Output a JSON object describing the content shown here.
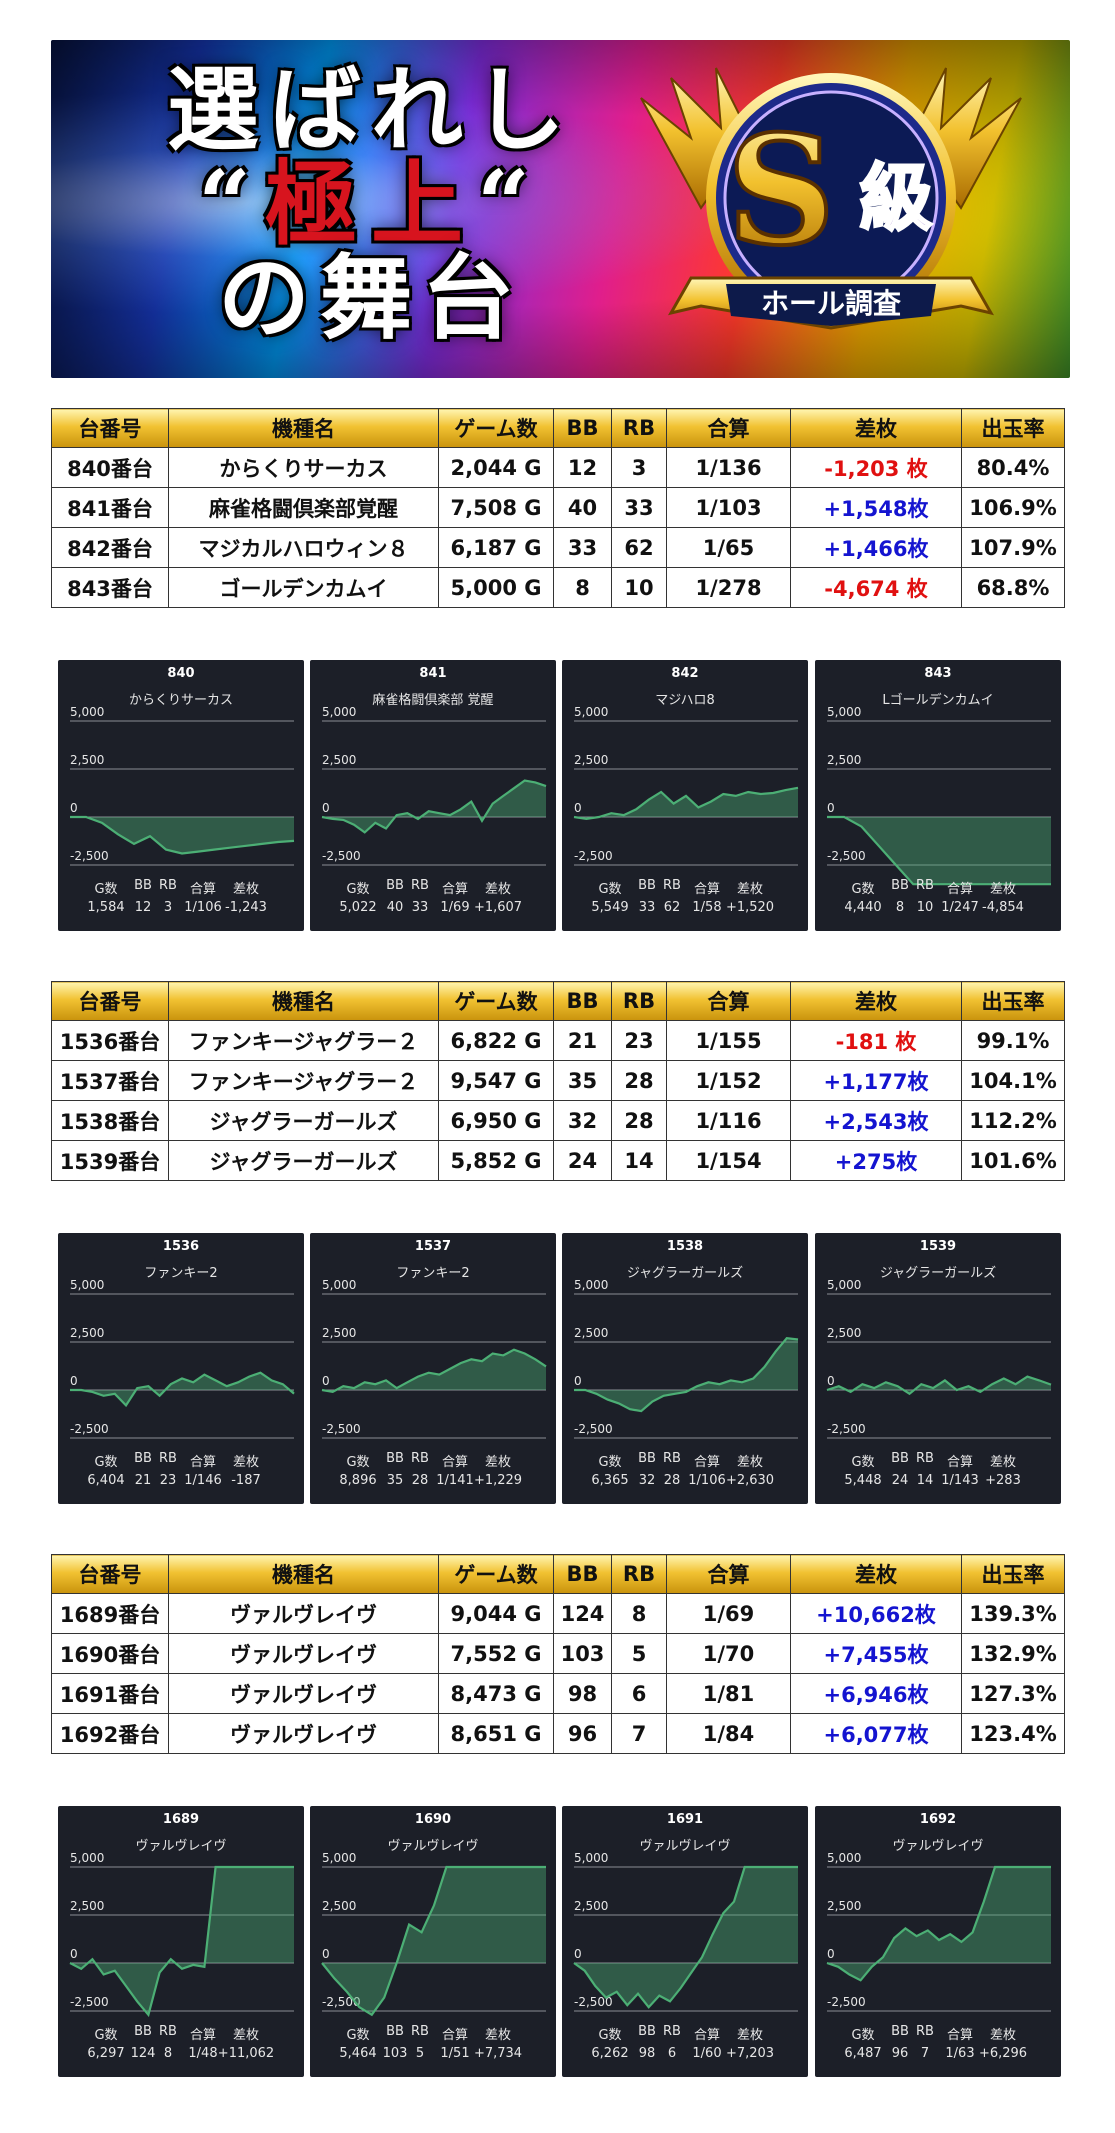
{
  "banner": {
    "line1": "選ばれし",
    "line2_open": "“",
    "line2_red": "極上",
    "line2_close": "“",
    "line3": "の舞台",
    "badge_main": "S級",
    "badge_ribbon": "ホール調査"
  },
  "colors": {
    "header_gold": "#f1c232",
    "negative": "#e01010",
    "positive": "#1414d0",
    "chart_bg": "#1c1f28",
    "chart_line": "#4caf75"
  },
  "table_headers": [
    "台番号",
    "機種名",
    "ゲーム数",
    "BB",
    "RB",
    "合算",
    "差枚",
    "出玉率"
  ],
  "tables": [
    {
      "rows": [
        {
          "no": "840番台",
          "name": "からくりサーカス",
          "games": "2,044 G",
          "bb": "12",
          "rb": "3",
          "total": "1/136",
          "diff": "-1,203 枚",
          "rate": "80.4%",
          "sign": "neg"
        },
        {
          "no": "841番台",
          "name": "麻雀格闘倶楽部覚醒",
          "games": "7,508 G",
          "bb": "40",
          "rb": "33",
          "total": "1/103",
          "diff": "+1,548枚",
          "rate": "106.9%",
          "sign": "pos"
        },
        {
          "no": "842番台",
          "name": "マジカルハロウィン８",
          "games": "6,187 G",
          "bb": "33",
          "rb": "62",
          "total": "1/65",
          "diff": "+1,466枚",
          "rate": "107.9%",
          "sign": "pos"
        },
        {
          "no": "843番台",
          "name": "ゴールデンカムイ",
          "games": "5,000 G",
          "bb": "8",
          "rb": "10",
          "total": "1/278",
          "diff": "-4,674 枚",
          "rate": "68.8%",
          "sign": "neg"
        }
      ]
    },
    {
      "rows": [
        {
          "no": "1536番台",
          "name": "ファンキージャグラー２",
          "games": "6,822 G",
          "bb": "21",
          "rb": "23",
          "total": "1/155",
          "diff": "-181 枚",
          "rate": "99.1%",
          "sign": "neg"
        },
        {
          "no": "1537番台",
          "name": "ファンキージャグラー２",
          "games": "9,547 G",
          "bb": "35",
          "rb": "28",
          "total": "1/152",
          "diff": "+1,177枚",
          "rate": "104.1%",
          "sign": "pos"
        },
        {
          "no": "1538番台",
          "name": "ジャグラーガールズ",
          "games": "6,950 G",
          "bb": "32",
          "rb": "28",
          "total": "1/116",
          "diff": "+2,543枚",
          "rate": "112.2%",
          "sign": "pos"
        },
        {
          "no": "1539番台",
          "name": "ジャグラーガールズ",
          "games": "5,852 G",
          "bb": "24",
          "rb": "14",
          "total": "1/154",
          "diff": "+275枚",
          "rate": "101.6%",
          "sign": "pos"
        }
      ]
    },
    {
      "rows": [
        {
          "no": "1689番台",
          "name": "ヴァルヴレイヴ",
          "games": "9,044 G",
          "bb": "124",
          "rb": "8",
          "total": "1/69",
          "diff": "+10,662枚",
          "rate": "139.3%",
          "sign": "pos"
        },
        {
          "no": "1690番台",
          "name": "ヴァルヴレイヴ",
          "games": "7,552 G",
          "bb": "103",
          "rb": "5",
          "total": "1/70",
          "diff": "+7,455枚",
          "rate": "132.9%",
          "sign": "pos"
        },
        {
          "no": "1691番台",
          "name": "ヴァルヴレイヴ",
          "games": "8,473 G",
          "bb": "98",
          "rb": "6",
          "total": "1/81",
          "diff": "+6,946枚",
          "rate": "127.3%",
          "sign": "pos"
        },
        {
          "no": "1692番台",
          "name": "ヴァルヴレイヴ",
          "games": "8,651 G",
          "bb": "96",
          "rb": "7",
          "total": "1/84",
          "diff": "+6,077枚",
          "rate": "123.4%",
          "sign": "pos"
        }
      ]
    }
  ],
  "stat_labels": [
    "G数",
    "BB",
    "RB",
    "合算",
    "差枚"
  ],
  "chart_data": [
    {
      "type": "area",
      "number": "840",
      "name": "からくりサーカス",
      "ylim": [
        -3500,
        5500
      ],
      "yticks": [
        "5,000",
        "2,500",
        "0",
        "-2,500"
      ],
      "ytick_values": [
        5000,
        2500,
        0,
        -2500
      ],
      "values": [
        0,
        0,
        -300,
        -900,
        -1400,
        -1000,
        -1700,
        -1900,
        -1800,
        -1700,
        -1600,
        -1500,
        -1400,
        -1300,
        -1243
      ],
      "stats": [
        "1,584",
        "12",
        "3",
        "1/106",
        "-1,243"
      ]
    },
    {
      "type": "area",
      "number": "841",
      "name": "麻雀格闘倶楽部 覚醒",
      "ylim": [
        -3500,
        5500
      ],
      "yticks": [
        "5,000",
        "2,500",
        "0",
        "-2,500"
      ],
      "ytick_values": [
        5000,
        2500,
        0,
        -2500
      ],
      "values": [
        0,
        -100,
        -150,
        -400,
        -800,
        -300,
        -600,
        100,
        200,
        -100,
        300,
        200,
        100,
        400,
        800,
        -200,
        700,
        1100,
        1500,
        1900,
        1800,
        1607
      ],
      "stats": [
        "5,022",
        "40",
        "33",
        "1/69",
        "+1,607"
      ]
    },
    {
      "type": "area",
      "number": "842",
      "name": "マジハロ8",
      "ylim": [
        -3500,
        5500
      ],
      "yticks": [
        "5,000",
        "2,500",
        "0",
        "-2,500"
      ],
      "ytick_values": [
        5000,
        2500,
        0,
        -2500
      ],
      "values": [
        0,
        -100,
        0,
        200,
        100,
        400,
        900,
        1300,
        700,
        1100,
        500,
        800,
        1200,
        1100,
        1300,
        1200,
        1250,
        1400,
        1520
      ],
      "stats": [
        "5,549",
        "33",
        "62",
        "1/58",
        "+1,520"
      ]
    },
    {
      "type": "area",
      "number": "843",
      "name": "Lゴールデンカムイ",
      "ylim": [
        -3500,
        5500
      ],
      "yticks": [
        "5,000",
        "2,500",
        "0",
        "-2,500"
      ],
      "ytick_values": [
        5000,
        2500,
        0,
        -2500
      ],
      "values": [
        0,
        0,
        -500,
        -1500,
        -2500,
        -3500,
        -3500,
        -3500,
        -3500,
        -3500,
        -3500,
        -3500,
        -3500,
        -3500
      ],
      "stats": [
        "4,440",
        "8",
        "10",
        "1/247",
        "-4,854"
      ]
    },
    {
      "type": "area",
      "number": "1536",
      "name": "ファンキー2",
      "ylim": [
        -3500,
        5500
      ],
      "yticks": [
        "5,000",
        "2,500",
        "0",
        "-2,500"
      ],
      "ytick_values": [
        5000,
        2500,
        0,
        -2500
      ],
      "values": [
        0,
        0,
        -100,
        -300,
        -200,
        -800,
        100,
        200,
        -300,
        300,
        600,
        400,
        800,
        500,
        200,
        400,
        700,
        900,
        500,
        300,
        -187
      ],
      "stats": [
        "6,404",
        "21",
        "23",
        "1/146",
        "-187"
      ]
    },
    {
      "type": "area",
      "number": "1537",
      "name": "ファンキー2",
      "ylim": [
        -3500,
        5500
      ],
      "yticks": [
        "5,000",
        "2,500",
        "0",
        "-2,500"
      ],
      "ytick_values": [
        5000,
        2500,
        0,
        -2500
      ],
      "values": [
        0,
        -100,
        200,
        100,
        400,
        300,
        500,
        100,
        400,
        700,
        900,
        800,
        1100,
        1400,
        1600,
        1500,
        1900,
        1800,
        2100,
        1900,
        1600,
        1229
      ],
      "stats": [
        "8,896",
        "35",
        "28",
        "1/141",
        "+1,229"
      ]
    },
    {
      "type": "area",
      "number": "1538",
      "name": "ジャグラーガールズ",
      "ylim": [
        -3500,
        5500
      ],
      "yticks": [
        "5,000",
        "2,500",
        "0",
        "-2,500"
      ],
      "ytick_values": [
        5000,
        2500,
        0,
        -2500
      ],
      "values": [
        0,
        0,
        -200,
        -500,
        -700,
        -1000,
        -1100,
        -600,
        -300,
        -200,
        -100,
        200,
        400,
        300,
        500,
        400,
        600,
        1200,
        2000,
        2700,
        2630
      ],
      "stats": [
        "6,365",
        "32",
        "28",
        "1/106",
        "+2,630"
      ]
    },
    {
      "type": "area",
      "number": "1539",
      "name": "ジャグラーガールズ",
      "ylim": [
        -3500,
        5500
      ],
      "yticks": [
        "5,000",
        "2,500",
        "0",
        "-2,500"
      ],
      "ytick_values": [
        5000,
        2500,
        0,
        -2500
      ],
      "values": [
        0,
        200,
        -100,
        300,
        100,
        400,
        200,
        -200,
        300,
        100,
        500,
        0,
        200,
        -100,
        300,
        600,
        300,
        700,
        500,
        283
      ],
      "stats": [
        "5,448",
        "24",
        "14",
        "1/143",
        "+283"
      ]
    },
    {
      "type": "area",
      "number": "1689",
      "name": "ヴァルヴレイヴ",
      "ylim": [
        -3500,
        5500
      ],
      "yticks": [
        "5,000",
        "2,500",
        "0",
        "-2,500"
      ],
      "ytick_values": [
        5000,
        2500,
        0,
        -2500
      ],
      "values": [
        0,
        -300,
        200,
        -600,
        -400,
        -1200,
        -2000,
        -2700,
        -500,
        200,
        -300,
        -100,
        -200,
        5000,
        5000,
        5000,
        5000,
        5000,
        5000,
        5000,
        5000
      ],
      "stats": [
        "6,297",
        "124",
        "8",
        "1/48",
        "+11,062"
      ]
    },
    {
      "type": "area",
      "number": "1690",
      "name": "ヴァルヴレイヴ",
      "ylim": [
        -3500,
        5500
      ],
      "yticks": [
        "5,000",
        "2,500",
        "0",
        "-2,500"
      ],
      "ytick_values": [
        5000,
        2500,
        0,
        -2500
      ],
      "values": [
        0,
        -800,
        -1500,
        -2300,
        -2700,
        -1800,
        0,
        2000,
        1600,
        3000,
        5000,
        5000,
        5000,
        5000,
        5000,
        5000,
        5000,
        5000,
        5000
      ],
      "stats": [
        "5,464",
        "103",
        "5",
        "1/51",
        "+7,734"
      ]
    },
    {
      "type": "area",
      "number": "1691",
      "name": "ヴァルヴレイヴ",
      "ylim": [
        -3500,
        5500
      ],
      "yticks": [
        "5,000",
        "2,500",
        "0",
        "-2,500"
      ],
      "ytick_values": [
        5000,
        2500,
        0,
        -2500
      ],
      "values": [
        0,
        -400,
        -1200,
        -1800,
        -1500,
        -2200,
        -1600,
        -2300,
        -1700,
        -2000,
        -1300,
        -500,
        300,
        1500,
        2600,
        3200,
        5000,
        5000,
        5000,
        5000,
        5000,
        5000
      ],
      "stats": [
        "6,262",
        "98",
        "6",
        "1/60",
        "+7,203"
      ]
    },
    {
      "type": "area",
      "number": "1692",
      "name": "ヴァルヴレイヴ",
      "ylim": [
        -3500,
        5500
      ],
      "yticks": [
        "5,000",
        "2,500",
        "0",
        "-2,500"
      ],
      "ytick_values": [
        5000,
        2500,
        0,
        -2500
      ],
      "values": [
        0,
        -200,
        -600,
        -900,
        -200,
        300,
        1300,
        1800,
        1400,
        1700,
        1200,
        1500,
        1100,
        1600,
        3200,
        5000,
        5000,
        5000,
        5000,
        5000,
        5000
      ],
      "stats": [
        "6,487",
        "96",
        "7",
        "1/63",
        "+6,296"
      ]
    }
  ]
}
